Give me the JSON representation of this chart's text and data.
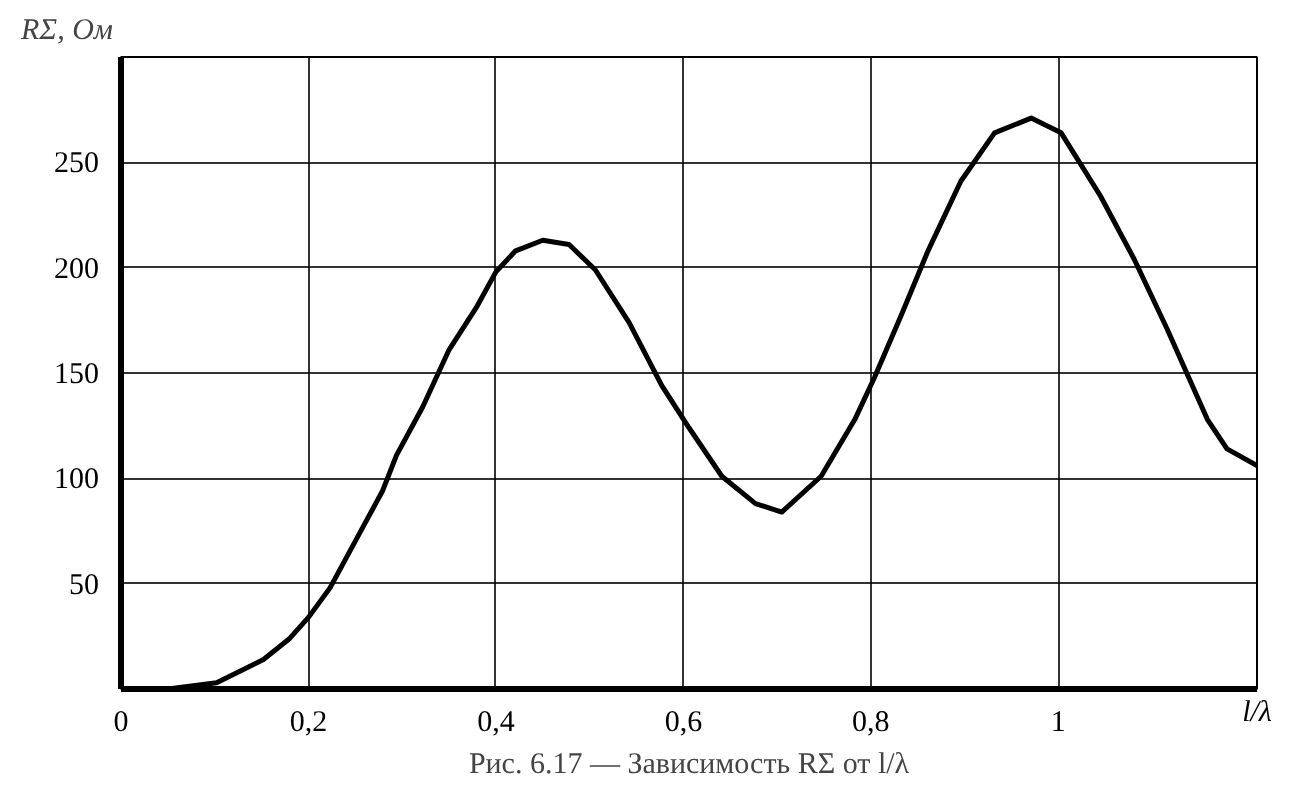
{
  "chart_data": {
    "type": "line",
    "title": "Рис. 6.17 — Зависимость RΣ от l/λ",
    "xlabel": "l/λ",
    "ylabel": "RΣ, Ом",
    "x": [
      0,
      0.05,
      0.102,
      0.152,
      0.18,
      0.2,
      0.223,
      0.251,
      0.279,
      0.294,
      0.322,
      0.35,
      0.379,
      0.4,
      0.421,
      0.45,
      0.478,
      0.506,
      0.542,
      0.577,
      0.606,
      0.641,
      0.677,
      0.705,
      0.747,
      0.783,
      0.804,
      0.833,
      0.861,
      0.896,
      0.932,
      0.971,
      1.003,
      1.045,
      1.081,
      1.116,
      1.159,
      1.18,
      1.212
    ],
    "series": [
      {
        "color": "#000000",
        "values": [
          0,
          0,
          3,
          14,
          24,
          34,
          48,
          71,
          94,
          111,
          134,
          161,
          181,
          198,
          208,
          213,
          211,
          199,
          174,
          144,
          124,
          101,
          88,
          84,
          101,
          128,
          148,
          178,
          208,
          241,
          264,
          271,
          264,
          234,
          204,
          171,
          128,
          114,
          106
        ]
      }
    ],
    "xlim": [
      0,
      1.212
    ],
    "ylim": [
      0,
      300
    ],
    "xticks": [
      {
        "value": 0,
        "label": "0"
      },
      {
        "value": 0.2,
        "label": "0,2"
      },
      {
        "value": 0.4,
        "label": "0,4"
      },
      {
        "value": 0.6,
        "label": "0,6"
      },
      {
        "value": 0.8,
        "label": "0,8"
      },
      1
    ],
    "yticks": [
      50,
      100,
      150,
      200,
      250
    ],
    "grid": true,
    "marker": "none",
    "line_style": "solid"
  }
}
